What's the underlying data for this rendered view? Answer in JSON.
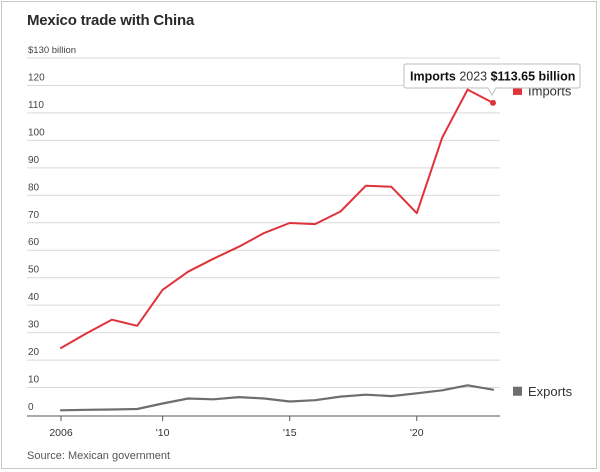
{
  "title": "Mexico trade with China",
  "source": "Source: Mexican government",
  "colors": {
    "imports": "#e0323a",
    "exports": "#6e6e6e",
    "grid": "#d9d9d9",
    "axis": "#555555"
  },
  "callout": {
    "series": "Imports",
    "year": "2023",
    "value": "$113.65 billion"
  },
  "chart_data": {
    "type": "line",
    "title": "Mexico trade with China",
    "ylabel": "$ billion",
    "ylim": [
      0,
      130
    ],
    "y_ticks": [
      0,
      10,
      20,
      30,
      40,
      50,
      60,
      70,
      80,
      90,
      100,
      110,
      120,
      130
    ],
    "y_tick_labels": [
      "0",
      "10",
      "20",
      "30",
      "40",
      "50",
      "60",
      "70",
      "80",
      "90",
      "100",
      "110",
      "120",
      "$130 billion"
    ],
    "xlim": [
      2006,
      2023
    ],
    "x_ticks": [
      2006,
      2010,
      2015,
      2020
    ],
    "x_tick_labels": [
      "2006",
      "'10",
      "'15",
      "'20"
    ],
    "x": [
      2006,
      2007,
      2008,
      2009,
      2010,
      2011,
      2012,
      2013,
      2014,
      2015,
      2016,
      2017,
      2018,
      2019,
      2020,
      2021,
      2022,
      2023
    ],
    "series": [
      {
        "name": "Imports",
        "color": "#e0323a",
        "values": [
          24.4,
          29.7,
          34.7,
          32.5,
          45.6,
          52.2,
          56.9,
          61.3,
          66.3,
          69.9,
          69.5,
          74.1,
          83.5,
          83.1,
          73.5,
          101,
          118.5,
          113.65
        ]
      },
      {
        "name": "Exports",
        "color": "#6e6e6e",
        "values": [
          1.7,
          1.9,
          2.0,
          2.2,
          4.2,
          6.0,
          5.7,
          6.5,
          6.0,
          4.9,
          5.4,
          6.7,
          7.4,
          6.9,
          7.9,
          9.0,
          10.8,
          9.2
        ]
      }
    ],
    "grid": true,
    "legend": "right, beside each line end"
  }
}
